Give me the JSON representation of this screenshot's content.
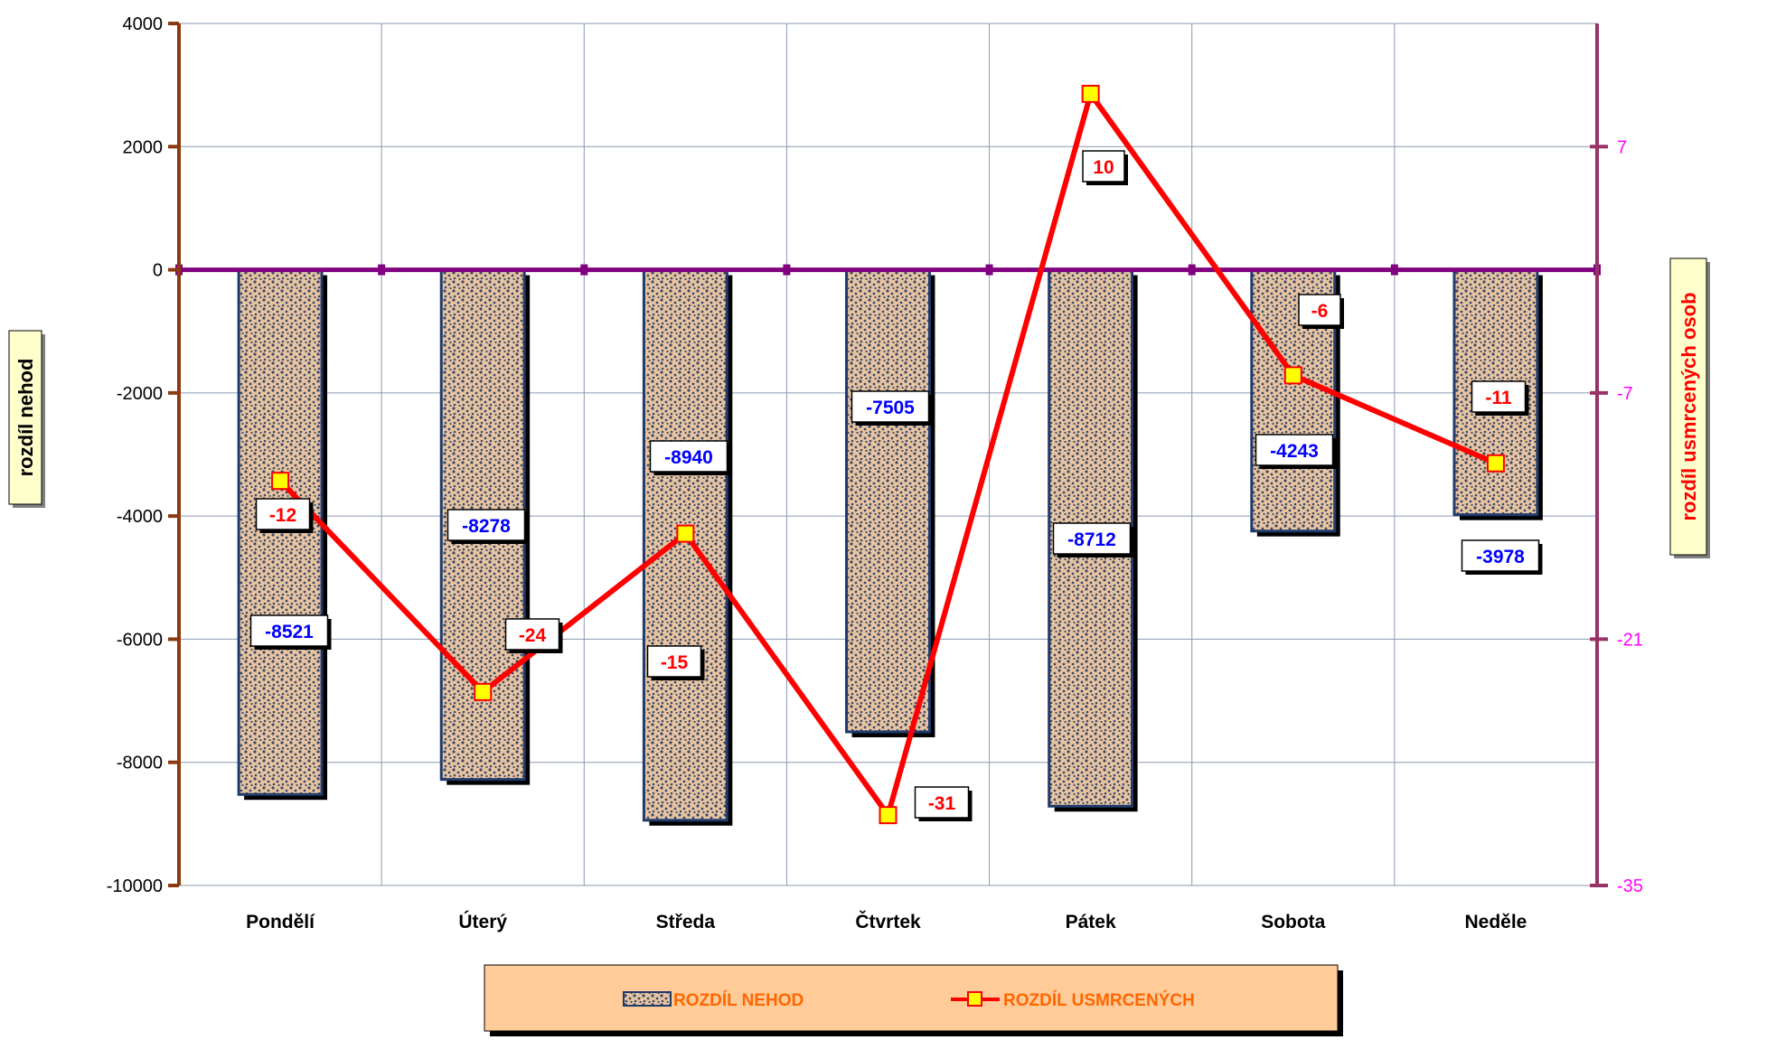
{
  "chart_data": {
    "type": "bar+line",
    "categories": [
      "Pondělí",
      "Úterý",
      "Středa",
      "Čtvrtek",
      "Pátek",
      "Sobota",
      "Neděle"
    ],
    "series": [
      {
        "name": "ROZDÍL NEHOD",
        "type": "bar",
        "axis": "left",
        "values": [
          -8521,
          -8278,
          -8940,
          -7505,
          -8712,
          -4243,
          -3978
        ],
        "labels": [
          "-8521",
          "-8278",
          "-8940",
          "-7505",
          "-8712",
          "-4243",
          "-3978"
        ]
      },
      {
        "name": "ROZDÍL USMRCENÝCH",
        "type": "line",
        "axis": "right",
        "values": [
          -12,
          -24,
          -15,
          -31,
          10,
          -6,
          -11
        ],
        "labels": [
          "-12",
          "-24",
          "-15",
          "-31",
          "10",
          "-6",
          "-11"
        ]
      }
    ],
    "y_left": {
      "label": "rozdíl nehod",
      "ylim": [
        -10000,
        4000
      ],
      "ticks": [
        "4000",
        "2000",
        "0",
        "-2000",
        "-4000",
        "-6000",
        "-8000",
        "-10000"
      ]
    },
    "y_right": {
      "label": "rozdíl usmrcených osob",
      "ylim": [
        -35,
        14
      ],
      "ticks": [
        "7",
        "-7",
        "-21",
        "-35"
      ]
    },
    "grid": true,
    "legend": "bottom",
    "colors": {
      "bar_fill": "#e8c4a0",
      "bar_dots": "#3a4a6a",
      "bar_edge": "#1f3a6b",
      "line": "#ff0000",
      "marker_fill": "#ffff00",
      "left_axis": "#8b3a0f",
      "right_axis": "#993366",
      "right_ticks": "#ff00ff",
      "zero_line": "#800080",
      "bar_label_text": "#0000ff",
      "line_label_text": "#ff0000",
      "legend_bg": "#ffcc99",
      "legend_text": "#ff6600",
      "axis_title_bg": "#ffffcc"
    }
  }
}
